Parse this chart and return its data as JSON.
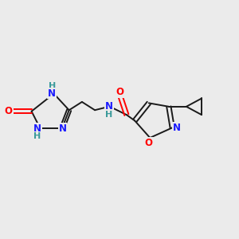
{
  "bg_color": "#ebebeb",
  "bond_color": "#1a1a1a",
  "N_color": "#1a1aff",
  "O_color": "#ff0000",
  "H_color": "#3a9a9a",
  "font_size": 8.5,
  "lw": 1.4,
  "figsize": [
    3.0,
    3.0
  ],
  "dpi": 100,
  "xlim": [
    0,
    10
  ],
  "ylim": [
    0,
    10
  ]
}
